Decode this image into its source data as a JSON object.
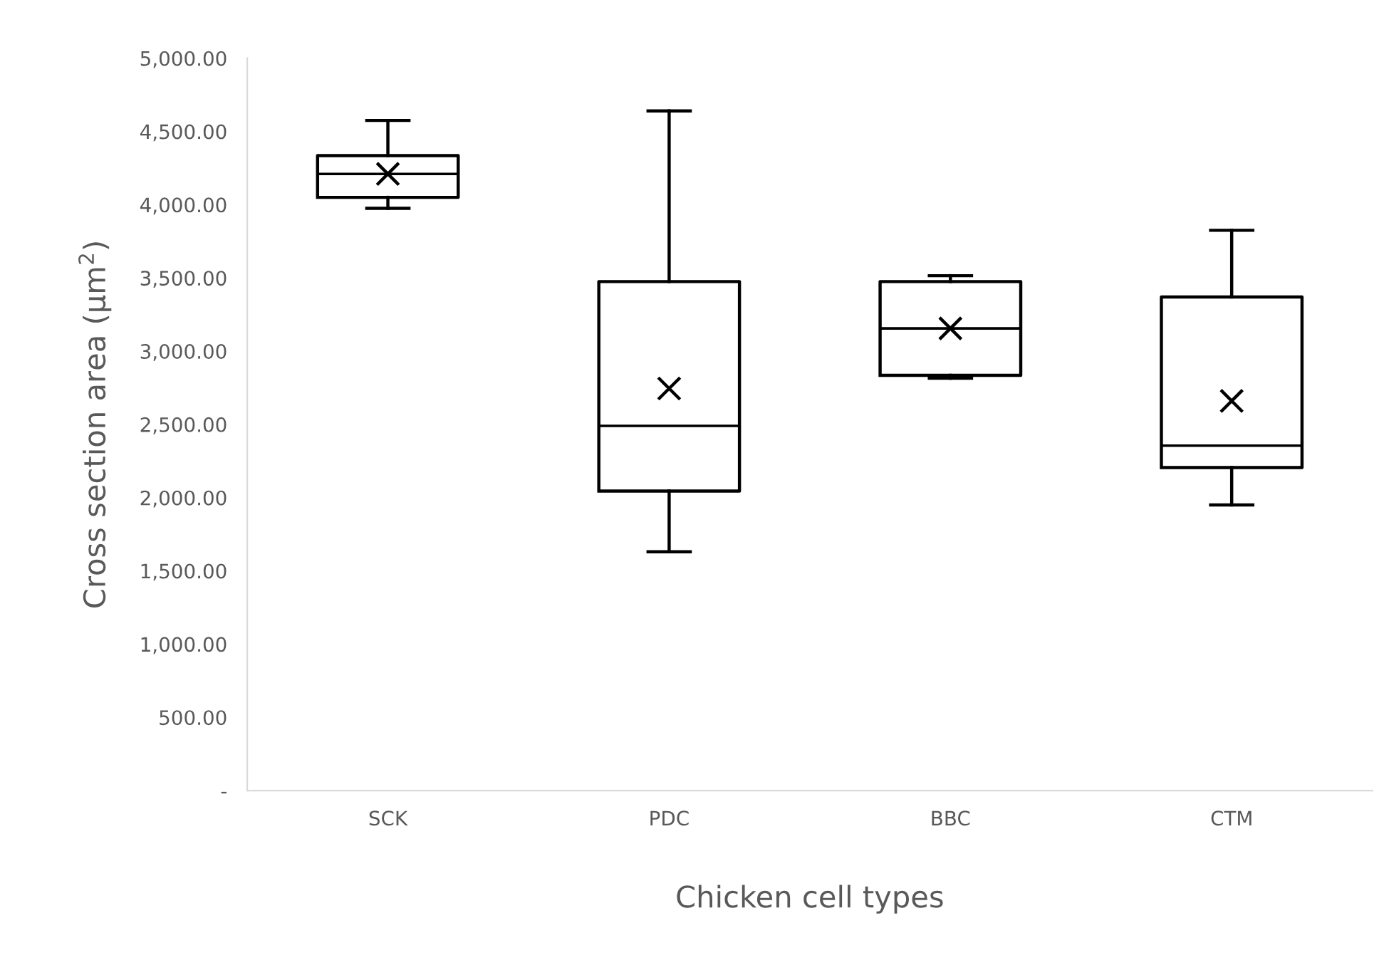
{
  "chart_data": {
    "type": "box",
    "xlabel": "Chicken cell types",
    "ylabel": "Cross section area (µm$^{2}$)",
    "categories": [
      "SCK",
      "PDC",
      "BBC",
      "CTM"
    ],
    "boxes": [
      {
        "low": 3975,
        "q1": 4050,
        "median": 4210,
        "q3": 4335,
        "high": 4575,
        "mean": 4210
      },
      {
        "low": 1630,
        "q1": 2045,
        "median": 2490,
        "q3": 3475,
        "high": 4640,
        "mean": 2745
      },
      {
        "low": 2815,
        "q1": 2835,
        "median": 3155,
        "q3": 3475,
        "high": 3515,
        "mean": 3155
      },
      {
        "low": 1950,
        "q1": 2205,
        "median": 2355,
        "q3": 3370,
        "high": 3825,
        "mean": 2660
      }
    ],
    "color": "#000000",
    "ylim": [
      0,
      5000
    ],
    "yticks": [
      {
        "value": 0,
        "label": "-"
      },
      {
        "value": 500,
        "label": "500.00"
      },
      {
        "value": 1000,
        "label": "1,000.00"
      },
      {
        "value": 1500,
        "label": "1,500.00"
      },
      {
        "value": 2000,
        "label": "2,000.00"
      },
      {
        "value": 2500,
        "label": "2,500.00"
      },
      {
        "value": 3000,
        "label": "3,000.00"
      },
      {
        "value": 3500,
        "label": "3,500.00"
      },
      {
        "value": 4000,
        "label": "4,000.00"
      },
      {
        "value": 4500,
        "label": "4,500.00"
      },
      {
        "value": 5000,
        "label": "5,000.00"
      }
    ],
    "marker": "cross",
    "grid": false,
    "legend": false
  }
}
